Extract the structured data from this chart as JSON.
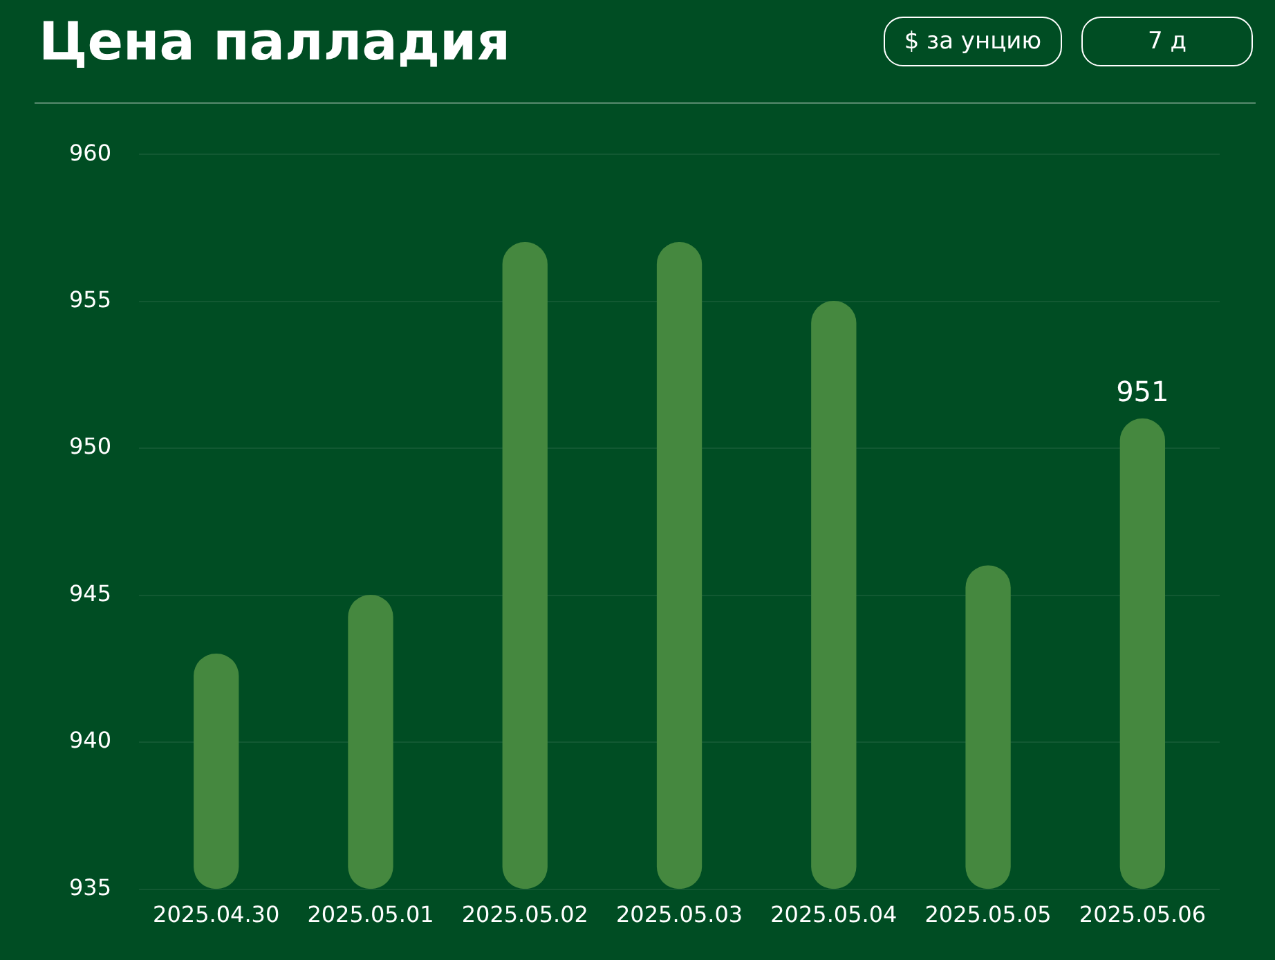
{
  "chart_data": {
    "type": "bar",
    "title": "Цена палладия",
    "annotations": [
      "$ за унцию",
      "7 д"
    ],
    "categories": [
      "2025.04.30",
      "2025.05.01",
      "2025.05.02",
      "2025.05.03",
      "2025.05.04",
      "2025.05.05",
      "2025.05.06"
    ],
    "values": [
      943,
      945,
      957,
      957,
      955,
      946,
      951
    ],
    "value_labels": [
      null,
      null,
      null,
      null,
      null,
      null,
      "951"
    ],
    "color": "#45883f",
    "ylim": [
      935,
      960
    ],
    "yticks": [
      935,
      940,
      945,
      950,
      955,
      960
    ],
    "grid": "y",
    "legend": false
  }
}
